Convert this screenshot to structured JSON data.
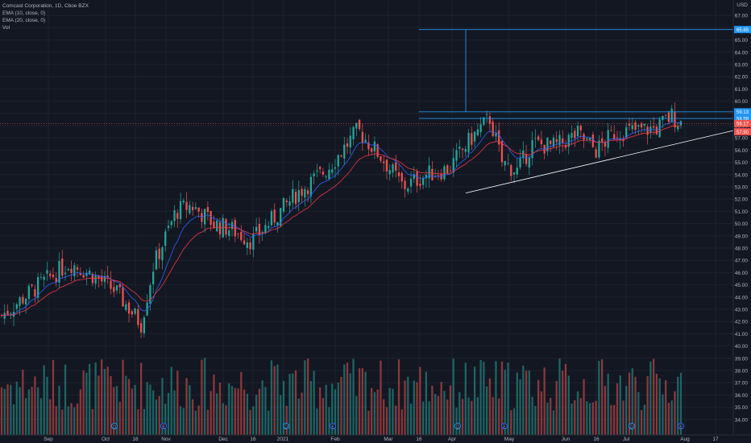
{
  "header": {
    "symbol": "Comcast Corporation, 1D, Cboe BZX",
    "ema10": "EMA (10, close, 0)",
    "ema20": "EMA (20, close, 0)",
    "vol": "Vol",
    "currency": "USD"
  },
  "colors": {
    "background": "#131722",
    "up": "#26a69a",
    "down": "#ef5350",
    "ema10": "#2962ff",
    "ema20": "#f23645",
    "levels": "#2196f3",
    "trendline": "#ffffff",
    "grid": "#1e222d",
    "axis_text": "#b2b5be"
  },
  "chart_data": {
    "type": "candlestick",
    "title": "Comcast Corporation, 1D, Cboe BZX",
    "y_axis_ticks": [
      "34.00",
      "35.00",
      "36.00",
      "37.00",
      "38.00",
      "39.00",
      "40.00",
      "41.00",
      "42.00",
      "43.00",
      "44.00",
      "45.00",
      "46.00",
      "47.00",
      "48.00",
      "49.00",
      "50.00",
      "51.00",
      "52.00",
      "53.00",
      "54.00",
      "55.00",
      "56.00",
      "57.00",
      "58.00",
      "59.00",
      "60.00",
      "61.00",
      "62.00",
      "63.00",
      "64.00",
      "65.00",
      "66.00",
      "67.00"
    ],
    "ylim": [
      33.0,
      68.0
    ],
    "x_axis_ticks": [
      "Sep",
      "Oct",
      "16",
      "Nov",
      "Dec",
      "16",
      "2021",
      "Feb",
      "Mar",
      "16",
      "Apr",
      "May",
      "Jun",
      "16",
      "Jul",
      "Aug",
      "17"
    ],
    "price_labels": [
      {
        "text": "65.85",
        "value": 65.85,
        "color": "#2196f3"
      },
      {
        "text": "59.13",
        "value": 59.13,
        "color": "#2196f3"
      },
      {
        "text": "58.59",
        "value": 58.59,
        "color": "#2196f3"
      },
      {
        "text": "58.17",
        "value": 58.17,
        "color": "#ef5350"
      },
      {
        "text": "57.50",
        "value": 57.5,
        "color": "#ef5350"
      }
    ],
    "horizontal_levels": [
      65.85,
      59.13,
      58.59
    ],
    "close_line": 58.17,
    "triangle_base": {
      "from": "Apr 2021",
      "low": 52.6
    },
    "trendline": {
      "from": {
        "date": "Apr 2021",
        "value": 52.5
      },
      "to": {
        "date": "Aug 2021",
        "value": 57.6
      }
    },
    "key_closes": [
      {
        "date": "Aug 2020",
        "close": 42.5
      },
      {
        "date": "Oct 2020",
        "close": 46.5
      },
      {
        "date": "late Oct 2020",
        "close": 41.8
      },
      {
        "date": "Dec 2020",
        "close": 52.0
      },
      {
        "date": "Jan 2021",
        "close": 48.8
      },
      {
        "date": "Mar 2021",
        "close": 57.5
      },
      {
        "date": "Apr 2021",
        "close": 53.0
      },
      {
        "date": "May 2021",
        "close": 58.5
      },
      {
        "date": "May 2021 low",
        "close": 54.3
      },
      {
        "date": "Jul 2021",
        "close": 56.0
      },
      {
        "date": "end Jul 2021",
        "close": 58.17
      }
    ],
    "event_markers": [
      {
        "type": "dividend",
        "label": "D"
      },
      {
        "type": "earnings",
        "label": "E"
      },
      {
        "type": "dividend",
        "label": "D"
      },
      {
        "type": "earnings",
        "label": "E"
      },
      {
        "type": "dividend",
        "label": "D"
      },
      {
        "type": "earnings",
        "label": "E"
      },
      {
        "type": "dividend",
        "label": "D"
      },
      {
        "type": "earnings",
        "label": "E"
      }
    ]
  }
}
